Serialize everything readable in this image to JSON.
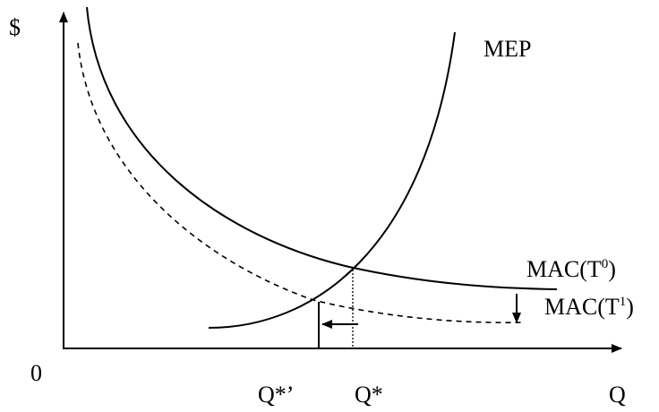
{
  "axes": {
    "y_label": "$",
    "x_label": "Q",
    "origin_label": "0"
  },
  "curves": {
    "mep": {
      "label": "MEP"
    },
    "mac_t0": {
      "prefix": "MAC(T",
      "sup": "0",
      "suffix": ")"
    },
    "mac_t1": {
      "prefix": "MAC(T",
      "sup": "1",
      "suffix": ")"
    }
  },
  "quantities": {
    "q_star_prime": "Q*’",
    "q_star": "Q*"
  },
  "colors": {
    "ink": "#000000",
    "background": "#ffffff"
  }
}
